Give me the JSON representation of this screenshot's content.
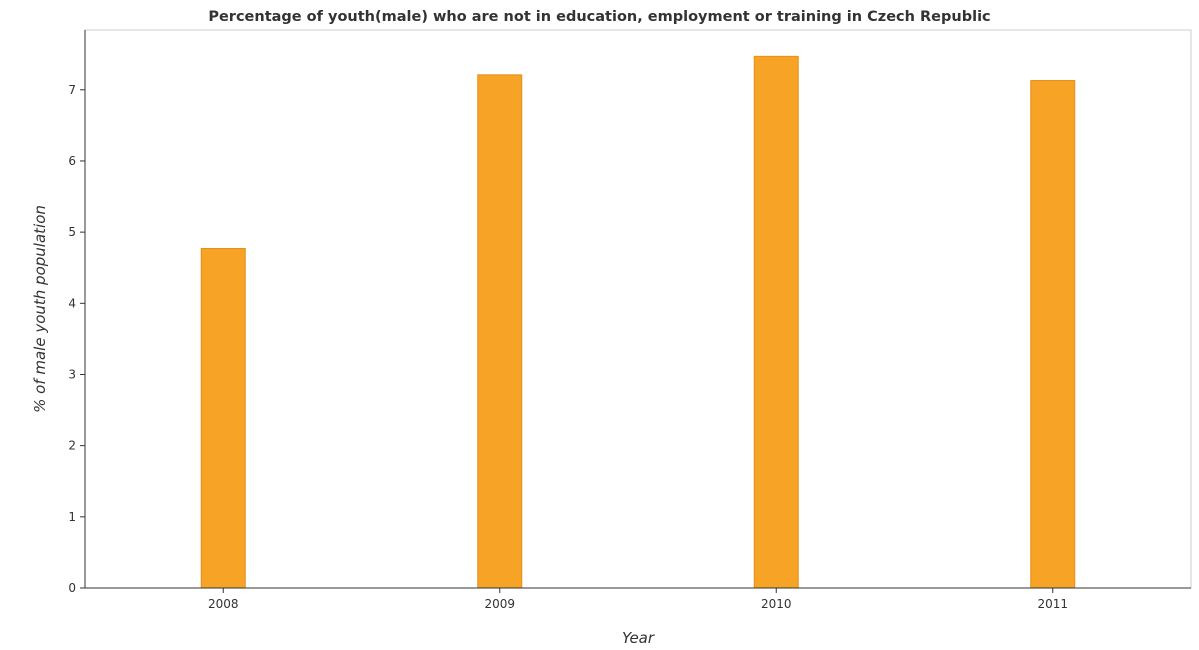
{
  "chart_data": {
    "type": "bar",
    "title": "Percentage of youth(male) who are not in education, employment or training in Czech Republic",
    "xlabel": "Year",
    "ylabel": "% of male youth population",
    "categories": [
      "2008",
      "2009",
      "2010",
      "2011"
    ],
    "values": [
      4.77,
      7.21,
      7.47,
      7.13
    ],
    "ylim": [
      0,
      7.84
    ],
    "yticks": [
      0,
      1,
      2,
      3,
      4,
      5,
      6,
      7
    ],
    "grid": false,
    "legend": "none",
    "colors": {
      "bar_fill": "#f7a325",
      "bar_stroke": "#e3901a",
      "axis": "#333333",
      "tick_text": "#333333",
      "title": "#333333"
    }
  }
}
